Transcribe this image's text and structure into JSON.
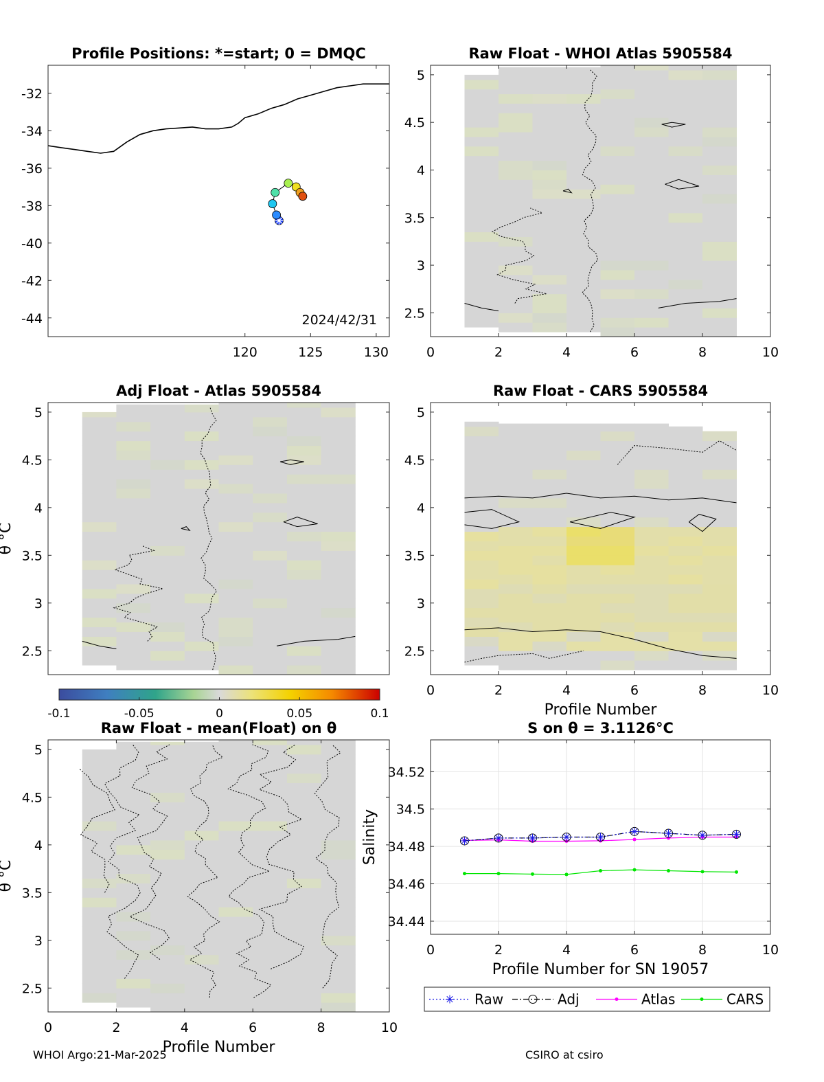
{
  "footer": {
    "left": "WHOI Argo:21-Mar-2025",
    "right": "CSIRO at csiro"
  },
  "colorbar": {
    "ticks": [
      "-0.1",
      "-0.05",
      "0",
      "0.05",
      "0.1"
    ],
    "range": [
      -0.1,
      0.1
    ]
  },
  "chart_data": [
    {
      "type": "scatter",
      "title": "Profile Positions: *=start; 0 = DMQC",
      "annotation": "2024/42/31",
      "xlim": [
        105,
        131
      ],
      "ylim": [
        -45,
        -30.5
      ],
      "xticks": [
        "120",
        "125",
        "130"
      ],
      "yticks": [
        "-32",
        "-34",
        "-36",
        "-38",
        "-40",
        "-42",
        "-44"
      ],
      "coastline": [
        [
          105,
          -34.8
        ],
        [
          106,
          -34.9
        ],
        [
          107,
          -35.0
        ],
        [
          108,
          -35.1
        ],
        [
          109,
          -35.2
        ],
        [
          110,
          -35.1
        ],
        [
          111,
          -34.6
        ],
        [
          112,
          -34.2
        ],
        [
          113,
          -34.0
        ],
        [
          114,
          -33.9
        ],
        [
          115,
          -33.85
        ],
        [
          116,
          -33.8
        ],
        [
          117,
          -33.9
        ],
        [
          118,
          -33.9
        ],
        [
          119,
          -33.8
        ],
        [
          119.5,
          -33.6
        ],
        [
          120,
          -33.3
        ],
        [
          121,
          -33.1
        ],
        [
          122,
          -32.8
        ],
        [
          123,
          -32.6
        ],
        [
          124,
          -32.3
        ],
        [
          125,
          -32.1
        ],
        [
          126,
          -31.9
        ],
        [
          127,
          -31.7
        ],
        [
          128,
          -31.6
        ],
        [
          129,
          -31.5
        ],
        [
          130,
          -31.5
        ],
        [
          131,
          -31.5
        ]
      ],
      "positions": [
        {
          "lon": 122.6,
          "lat": -38.8,
          "color": "#1a3fff",
          "marker": "start"
        },
        {
          "lon": 122.4,
          "lat": -38.5,
          "color": "#2a8bff"
        },
        {
          "lon": 122.1,
          "lat": -37.9,
          "color": "#1fc7f0"
        },
        {
          "lon": 122.3,
          "lat": -37.3,
          "color": "#4fe0a8"
        },
        {
          "lon": 123.3,
          "lat": -36.8,
          "color": "#a8f050"
        },
        {
          "lon": 123.9,
          "lat": -37.0,
          "color": "#f0e020"
        },
        {
          "lon": 124.2,
          "lat": -37.3,
          "color": "#f0a020"
        },
        {
          "lon": 124.4,
          "lat": -37.5,
          "color": "#e05010"
        }
      ]
    },
    {
      "type": "heatmap",
      "title": "Raw Float - WHOI Atlas  5905584",
      "xlim": [
        0,
        10
      ],
      "ylim": [
        2.25,
        5.1
      ],
      "xticks": [
        "0",
        "2",
        "4",
        "6",
        "8",
        "10"
      ],
      "yticks": [
        "2.5",
        "3",
        "3.5",
        "4",
        "4.5",
        "5"
      ],
      "xlabel": "",
      "ylabel": "",
      "tint": "greenish"
    },
    {
      "type": "heatmap",
      "title": "Adj Float - Atlas  5905584",
      "xlim": [
        0,
        10
      ],
      "ylim": [
        2.25,
        5.1
      ],
      "xticks": [],
      "yticks": [
        "2.5",
        "3",
        "3.5",
        "4",
        "4.5",
        "5"
      ],
      "xlabel": "",
      "ylabel": "θ °C",
      "tint": "greenish"
    },
    {
      "type": "heatmap",
      "title": "Raw Float - CARS  5905584",
      "xlim": [
        0,
        10
      ],
      "ylim": [
        2.25,
        5.1
      ],
      "xticks": [
        "0",
        "2",
        "4",
        "6",
        "8",
        "10"
      ],
      "yticks": [
        "2.5",
        "3",
        "3.5",
        "4",
        "4.5",
        "5"
      ],
      "xlabel": "Profile Number",
      "ylabel": "",
      "tint": "yellowish"
    },
    {
      "type": "heatmap",
      "title": "Raw Float - mean(Float) on θ",
      "xlim": [
        0,
        10
      ],
      "ylim": [
        2.25,
        5.1
      ],
      "xticks": [
        "0",
        "2",
        "4",
        "6",
        "8",
        "10"
      ],
      "yticks": [
        "2.5",
        "3",
        "3.5",
        "4",
        "4.5",
        "5"
      ],
      "xlabel": "Profile Number",
      "ylabel": "θ °C",
      "tint": "grey"
    },
    {
      "type": "line",
      "title": "S on θ = 3.1126°C",
      "xlabel": "Profile Number for SN 19057",
      "ylabel": "Salinity",
      "xlim": [
        0,
        10
      ],
      "ylim": [
        34.433,
        34.537
      ],
      "xticks": [
        "0",
        "2",
        "4",
        "6",
        "8",
        "10"
      ],
      "yticks": [
        "34.44",
        "34.46",
        "34.48",
        "34.5",
        "34.52"
      ],
      "grid": true,
      "legend_position": "bottom",
      "x": [
        1,
        2,
        3,
        4,
        5,
        6,
        7,
        8,
        9
      ],
      "series": [
        {
          "name": "Raw",
          "color": "#1a1ae6",
          "style": "dotted",
          "marker": "star",
          "values": [
            34.483,
            34.4845,
            34.4845,
            34.485,
            34.485,
            34.488,
            34.487,
            34.486,
            34.4865
          ]
        },
        {
          "name": "Adj",
          "color": "#000000",
          "style": "dashdot",
          "marker": "circle",
          "values": [
            34.483,
            34.4845,
            34.4845,
            34.485,
            34.485,
            34.488,
            34.487,
            34.486,
            34.4865
          ]
        },
        {
          "name": "Atlas",
          "color": "#ff00ff",
          "style": "solid",
          "marker": "dot",
          "values": [
            34.4832,
            34.4835,
            34.4828,
            34.4828,
            34.483,
            34.4837,
            34.4845,
            34.485,
            34.485
          ]
        },
        {
          "name": "CARS",
          "color": "#00e600",
          "style": "solid",
          "marker": "dot",
          "values": [
            34.4655,
            34.4655,
            34.4652,
            34.465,
            34.467,
            34.4675,
            34.467,
            34.4665,
            34.4663
          ]
        }
      ]
    }
  ]
}
